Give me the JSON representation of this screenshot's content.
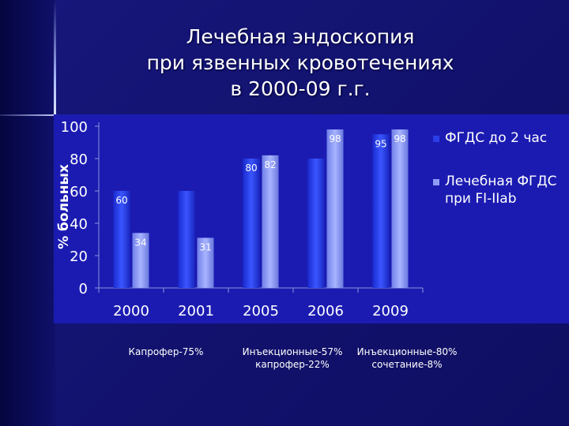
{
  "title_lines": [
    "Лечебная эндоскопия",
    "при язвенных кровотечениях",
    "в 2000-09 г.г."
  ],
  "chart_data": {
    "type": "bar",
    "categories": [
      "2000",
      "2001",
      "2005",
      "2006",
      "2009"
    ],
    "series": [
      {
        "name": "ФГДС до 2 час",
        "values": [
          60,
          60,
          80,
          80,
          95
        ],
        "labels": [
          "60",
          "",
          "80",
          "",
          "95"
        ],
        "color": "#2a3fe8"
      },
      {
        "name": "Лечебная ФГДС при FI-IIab",
        "values": [
          34,
          31,
          82,
          98,
          98
        ],
        "labels": [
          "34",
          "31",
          "82",
          "98",
          "98"
        ],
        "color": "#7f8ff5"
      }
    ],
    "ylabel": "% больных",
    "ylim": [
      0,
      100
    ],
    "yticks": [
      "0",
      "20",
      "40",
      "60",
      "80",
      "100"
    ],
    "legend_position": "right"
  },
  "notes": [
    {
      "lines": [
        "Капрофер-75%"
      ]
    },
    {
      "lines": [
        "Инъекционные-57%",
        "капрофер-22%"
      ]
    },
    {
      "lines": [
        "Инъекционные-80%",
        "сочетание-8%"
      ]
    }
  ]
}
